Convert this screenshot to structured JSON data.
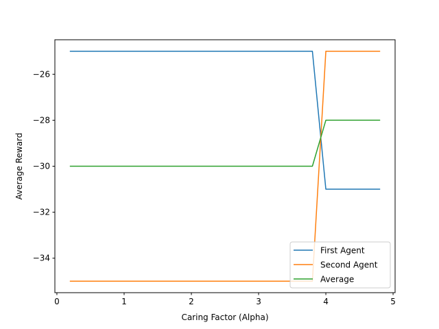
{
  "chart_data": {
    "type": "line",
    "title": "",
    "xlabel": "Caring Factor (Alpha)",
    "ylabel": "Average Reward",
    "xlim": [
      -0.03,
      5.03
    ],
    "ylim": [
      -35.5,
      -24.5
    ],
    "xticks": [
      0,
      1,
      2,
      3,
      4,
      5
    ],
    "xtick_labels": [
      "0",
      "1",
      "2",
      "3",
      "4",
      "5"
    ],
    "yticks": [
      -34,
      -32,
      -30,
      -28,
      -26
    ],
    "ytick_labels": [
      "−34",
      "−32",
      "−30",
      "−28",
      "−26"
    ],
    "grid": false,
    "legend_position": "lower-right",
    "x": [
      0.2,
      3.8,
      4.0,
      4.8
    ],
    "series": [
      {
        "name": "First Agent",
        "color": "#1f77b4",
        "values": [
          -25,
          -25,
          -31,
          -31
        ]
      },
      {
        "name": "Second Agent",
        "color": "#ff7f0e",
        "values": [
          -35,
          -35,
          -25,
          -25
        ]
      },
      {
        "name": "Average",
        "color": "#2ca02c",
        "values": [
          -30,
          -30,
          -28,
          -28
        ]
      }
    ]
  }
}
